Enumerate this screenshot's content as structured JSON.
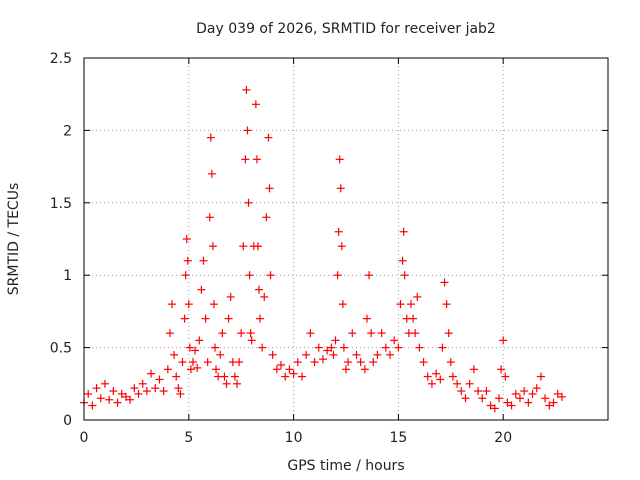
{
  "chart_data": {
    "type": "scatter",
    "title": "Day 039 of 2026, SRMTID for receiver jab2",
    "xlabel": "GPS time / hours",
    "ylabel": "SRMTID / TECUs",
    "xlim": [
      0,
      25
    ],
    "ylim": [
      0,
      2.5
    ],
    "xticks": [
      0,
      5,
      10,
      15,
      20
    ],
    "yticks": [
      0,
      0.5,
      1,
      1.5,
      2,
      2.5
    ],
    "xtick_labels": [
      "0",
      "5",
      "10",
      "15",
      "20"
    ],
    "ytick_labels": [
      "0",
      "0.5",
      "1",
      "1.5",
      "2",
      "2.5"
    ],
    "grid": true,
    "marker": "+",
    "color": "#ff0000",
    "series": [
      {
        "name": "SRMTID",
        "x": [
          0.0,
          0.2,
          0.4,
          0.6,
          0.8,
          1.0,
          1.2,
          1.4,
          1.6,
          1.8,
          2.0,
          2.2,
          2.4,
          2.6,
          2.8,
          3.0,
          3.2,
          3.4,
          3.6,
          3.8,
          4.0,
          4.1,
          4.2,
          4.3,
          4.4,
          4.5,
          4.6,
          4.7,
          4.8,
          4.85,
          4.9,
          4.95,
          5.0,
          5.05,
          5.1,
          5.2,
          5.3,
          5.4,
          5.5,
          5.6,
          5.7,
          5.8,
          5.9,
          6.0,
          6.05,
          6.1,
          6.15,
          6.2,
          6.25,
          6.3,
          6.4,
          6.5,
          6.6,
          6.7,
          6.8,
          6.9,
          7.0,
          7.1,
          7.2,
          7.3,
          7.4,
          7.5,
          7.6,
          7.7,
          7.75,
          7.8,
          7.85,
          7.9,
          7.95,
          8.0,
          8.1,
          8.2,
          8.25,
          8.3,
          8.35,
          8.4,
          8.5,
          8.6,
          8.7,
          8.8,
          8.85,
          8.9,
          9.0,
          9.2,
          9.4,
          9.6,
          9.8,
          10.0,
          10.2,
          10.4,
          10.6,
          10.8,
          11.0,
          11.2,
          11.4,
          11.6,
          11.8,
          11.9,
          12.0,
          12.1,
          12.15,
          12.2,
          12.25,
          12.3,
          12.35,
          12.4,
          12.5,
          12.6,
          12.8,
          13.0,
          13.2,
          13.4,
          13.5,
          13.6,
          13.7,
          13.8,
          14.0,
          14.2,
          14.4,
          14.6,
          14.8,
          15.0,
          15.1,
          15.2,
          15.25,
          15.3,
          15.4,
          15.5,
          15.6,
          15.7,
          15.8,
          15.9,
          16.0,
          16.2,
          16.4,
          16.6,
          16.8,
          17.0,
          17.1,
          17.2,
          17.3,
          17.4,
          17.5,
          17.6,
          17.8,
          18.0,
          18.2,
          18.4,
          18.6,
          18.8,
          19.0,
          19.2,
          19.4,
          19.6,
          19.8,
          19.9,
          20.0,
          20.1,
          20.2,
          20.4,
          20.6,
          20.8,
          21.0,
          21.2,
          21.4,
          21.6,
          21.8,
          22.0,
          22.2,
          22.4,
          22.6,
          22.8
        ],
        "y": [
          0.12,
          0.18,
          0.1,
          0.22,
          0.15,
          0.25,
          0.14,
          0.2,
          0.12,
          0.18,
          0.16,
          0.14,
          0.22,
          0.18,
          0.25,
          0.2,
          0.32,
          0.22,
          0.28,
          0.2,
          0.35,
          0.6,
          0.8,
          0.45,
          0.3,
          0.22,
          0.18,
          0.4,
          0.7,
          1.0,
          1.25,
          1.1,
          0.8,
          0.5,
          0.35,
          0.4,
          0.48,
          0.36,
          0.55,
          0.9,
          1.1,
          0.7,
          0.4,
          1.4,
          1.95,
          1.7,
          1.2,
          0.8,
          0.5,
          0.35,
          0.3,
          0.45,
          0.6,
          0.3,
          0.25,
          0.7,
          0.85,
          0.4,
          0.3,
          0.25,
          0.4,
          0.6,
          1.2,
          1.8,
          2.28,
          2.0,
          1.5,
          1.0,
          0.6,
          0.55,
          1.2,
          2.18,
          1.8,
          1.2,
          0.9,
          0.7,
          0.5,
          0.85,
          1.4,
          1.95,
          1.6,
          1.0,
          0.45,
          0.35,
          0.38,
          0.3,
          0.35,
          0.32,
          0.4,
          0.3,
          0.45,
          0.6,
          0.4,
          0.5,
          0.42,
          0.48,
          0.5,
          0.45,
          0.55,
          1.0,
          1.3,
          1.8,
          1.6,
          1.2,
          0.8,
          0.5,
          0.35,
          0.4,
          0.6,
          0.45,
          0.4,
          0.35,
          0.7,
          1.0,
          0.6,
          0.4,
          0.45,
          0.6,
          0.5,
          0.45,
          0.55,
          0.5,
          0.8,
          1.1,
          1.3,
          1.0,
          0.7,
          0.6,
          0.8,
          0.7,
          0.6,
          0.85,
          0.5,
          0.4,
          0.3,
          0.25,
          0.32,
          0.28,
          0.5,
          0.95,
          0.8,
          0.6,
          0.4,
          0.3,
          0.25,
          0.2,
          0.15,
          0.25,
          0.35,
          0.2,
          0.15,
          0.2,
          0.1,
          0.08,
          0.15,
          0.35,
          0.55,
          0.3,
          0.12,
          0.1,
          0.18,
          0.15,
          0.2,
          0.12,
          0.18,
          0.22,
          0.3,
          0.15,
          0.1,
          0.12,
          0.18,
          0.16
        ]
      }
    ]
  }
}
